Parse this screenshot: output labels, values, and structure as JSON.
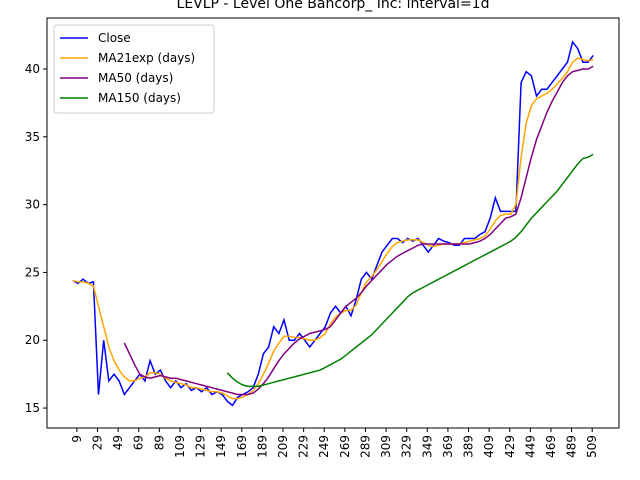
{
  "chart_data": {
    "type": "line",
    "title": "LEVLP - Level One Bancorp_ Inc: interval=1d",
    "x": [
      5,
      10,
      15,
      20,
      25,
      30,
      35,
      40,
      45,
      50,
      55,
      60,
      65,
      70,
      75,
      80,
      85,
      90,
      95,
      100,
      105,
      110,
      115,
      120,
      125,
      130,
      135,
      140,
      145,
      150,
      155,
      160,
      165,
      170,
      175,
      180,
      185,
      190,
      195,
      200,
      205,
      210,
      215,
      220,
      225,
      230,
      235,
      240,
      245,
      250,
      255,
      260,
      265,
      270,
      275,
      280,
      285,
      290,
      295,
      300,
      305,
      310,
      315,
      320,
      325,
      330,
      335,
      340,
      345,
      350,
      355,
      360,
      365,
      370,
      375,
      380,
      385,
      390,
      395,
      400,
      405,
      410,
      415,
      420,
      425,
      430,
      435,
      440,
      445,
      450,
      455,
      460,
      465,
      470,
      475,
      480,
      485,
      490,
      495,
      500,
      505,
      510
    ],
    "series": [
      {
        "name": "Close",
        "color": "#0000ff",
        "values": [
          24.4,
          24.2,
          24.5,
          24.2,
          24.3,
          16,
          20,
          17,
          17.5,
          17,
          16,
          16.5,
          17,
          17.5,
          17,
          18.5,
          17.5,
          17.8,
          17,
          16.5,
          17,
          16.5,
          16.8,
          16.3,
          16.5,
          16.2,
          16.5,
          16,
          16.2,
          16,
          15.5,
          15.2,
          15.8,
          16,
          16.2,
          16.5,
          17.5,
          19,
          19.5,
          21,
          20.5,
          21.5,
          20,
          20,
          20.5,
          20,
          19.5,
          20,
          20.5,
          21,
          22,
          22.5,
          22,
          22.5,
          21.8,
          23,
          24.5,
          25,
          24.5,
          25.5,
          26.5,
          27,
          27.5,
          27.5,
          27.2,
          27.5,
          27.3,
          27.5,
          27,
          26.5,
          27,
          27.5,
          27.3,
          27.2,
          27,
          27,
          27.5,
          27.5,
          27.5,
          27.8,
          28,
          29,
          30.5,
          29.5,
          29.5,
          29.5,
          29.5,
          39,
          39.8,
          39.5,
          38,
          38.5,
          38.5,
          39,
          39.5,
          40,
          40.5,
          42,
          41.5,
          40.5,
          40.5,
          41
        ]
      },
      {
        "name": "MA21exp (days)",
        "color": "#ffa500",
        "values": [
          24.4,
          24.3,
          24.3,
          24.2,
          24,
          22.5,
          21,
          19.5,
          18.5,
          17.8,
          17.3,
          17,
          17,
          17.2,
          17.3,
          17.6,
          17.6,
          17.5,
          17.2,
          17,
          16.9,
          16.8,
          16.7,
          16.5,
          16.5,
          16.4,
          16.3,
          16.2,
          16.2,
          16.1,
          15.9,
          15.7,
          15.7,
          15.8,
          16,
          16.3,
          16.8,
          17.5,
          18.3,
          19.2,
          19.8,
          20.3,
          20.3,
          20.2,
          20.2,
          20.1,
          20,
          20,
          20.2,
          20.5,
          21.2,
          21.7,
          22,
          22.2,
          22.2,
          22.6,
          23.5,
          24.3,
          24.7,
          25.2,
          25.8,
          26.4,
          26.9,
          27.2,
          27.3,
          27.4,
          27.4,
          27.4,
          27.2,
          27,
          26.9,
          27,
          27.1,
          27.1,
          27.1,
          27.1,
          27.2,
          27.3,
          27.4,
          27.5,
          27.7,
          28.2,
          28.8,
          29.2,
          29.3,
          29.3,
          30,
          33.5,
          36,
          37.3,
          37.8,
          38,
          38.2,
          38.5,
          38.9,
          39.3,
          39.8,
          40.5,
          40.8,
          40.7,
          40.6,
          40.7
        ]
      },
      {
        "name": "MA50 (days)",
        "color": "#800080",
        "values": [
          null,
          null,
          null,
          null,
          null,
          null,
          null,
          null,
          null,
          null,
          19.8,
          19,
          18.2,
          17.5,
          17.3,
          17.2,
          17.3,
          17.4,
          17.3,
          17.2,
          17.2,
          17.1,
          17,
          16.9,
          16.8,
          16.7,
          16.6,
          16.5,
          16.4,
          16.3,
          16.2,
          16.1,
          16,
          16,
          16,
          16.1,
          16.4,
          16.8,
          17.3,
          17.9,
          18.5,
          19,
          19.4,
          19.8,
          20.1,
          20.3,
          20.5,
          20.6,
          20.7,
          20.8,
          21,
          21.5,
          22,
          22.5,
          22.8,
          23.1,
          23.5,
          24,
          24.4,
          24.8,
          25.2,
          25.6,
          25.9,
          26.2,
          26.4,
          26.6,
          26.8,
          27,
          27.1,
          27.1,
          27.1,
          27.1,
          27.1,
          27.1,
          27.1,
          27.1,
          27.1,
          27.1,
          27.2,
          27.3,
          27.5,
          27.8,
          28.2,
          28.6,
          29,
          29.1,
          29.3,
          30.5,
          32,
          33.5,
          34.8,
          35.8,
          36.8,
          37.6,
          38.3,
          39,
          39.5,
          39.8,
          39.9,
          40,
          40,
          40.2
        ]
      },
      {
        "name": "MA150 (days)",
        "color": "#008000",
        "values": [
          null,
          null,
          null,
          null,
          null,
          null,
          null,
          null,
          null,
          null,
          null,
          null,
          null,
          null,
          null,
          null,
          null,
          null,
          null,
          null,
          null,
          null,
          null,
          null,
          null,
          null,
          null,
          null,
          null,
          null,
          17.6,
          17.2,
          16.9,
          16.7,
          16.6,
          16.6,
          16.6,
          16.7,
          16.8,
          16.9,
          17,
          17.1,
          17.2,
          17.3,
          17.4,
          17.5,
          17.6,
          17.7,
          17.8,
          18,
          18.2,
          18.4,
          18.6,
          18.9,
          19.2,
          19.5,
          19.8,
          20.1,
          20.4,
          20.8,
          21.2,
          21.6,
          22,
          22.4,
          22.8,
          23.2,
          23.5,
          23.7,
          23.9,
          24.1,
          24.3,
          24.5,
          24.7,
          24.9,
          25.1,
          25.3,
          25.5,
          25.7,
          25.9,
          26.1,
          26.3,
          26.5,
          26.7,
          26.9,
          27.1,
          27.3,
          27.6,
          28,
          28.5,
          29,
          29.4,
          29.8,
          30.2,
          30.6,
          31,
          31.5,
          32,
          32.5,
          33,
          33.4,
          33.5,
          33.7
        ]
      }
    ],
    "xlim": [
      -20,
      535
    ],
    "xticks": [
      9,
      29,
      49,
      69,
      89,
      109,
      129,
      149,
      169,
      189,
      209,
      229,
      249,
      269,
      289,
      309,
      329,
      349,
      369,
      389,
      409,
      429,
      449,
      469,
      489,
      509
    ],
    "ylim": [
      13.53,
      43.76
    ],
    "yticks": [
      15,
      20,
      25,
      30,
      35,
      40
    ],
    "legend": "upper left",
    "grid": false
  }
}
